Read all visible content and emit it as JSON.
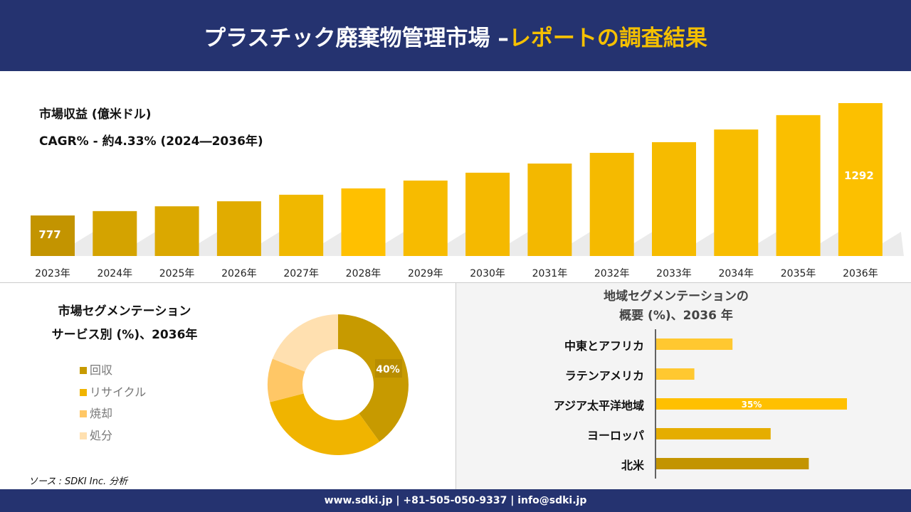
{
  "header": {
    "title_main": "プラスチック廃棄物管理市場 –",
    "title_highlight": "レポートの調査結果"
  },
  "footer": {
    "text": "www.sdki.jp | +81-505-050-9337 | info@sdki.jp"
  },
  "source": "ソース : SDKI Inc. 分析",
  "chart_data": [
    {
      "type": "bar",
      "title": "市場収益 (億米ドル)",
      "subtitle": "CAGR% - 約4.33% (2024―2036年)",
      "categories": [
        "2023年",
        "2024年",
        "2025年",
        "2026年",
        "2027年",
        "2028年",
        "2029年",
        "2030年",
        "2031年",
        "2032年",
        "2033年",
        "2034年",
        "2035年",
        "2036年"
      ],
      "values": [
        777,
        797,
        819,
        842,
        872,
        901,
        937,
        973,
        1015,
        1064,
        1113,
        1171,
        1237,
        1292
      ],
      "labels": {
        "0": "777",
        "13": "1292"
      },
      "colors": [
        "#c39400",
        "#d4a300",
        "#dba800",
        "#e1ac00",
        "#f0b800",
        "#ffc000",
        "#f7bb00",
        "#f5b900",
        "#f3b800",
        "#f5ba00",
        "#f6bb00",
        "#f8bd00",
        "#fabf00",
        "#fcc000"
      ]
    },
    {
      "type": "pie",
      "title_line1": "市場セグメンテーション",
      "title_line2": "サービス別 (%)、2036年",
      "categories": [
        "回収",
        "リサイクル",
        "焼却",
        "処分"
      ],
      "values": [
        40,
        31,
        10,
        19
      ],
      "colors": [
        "#c79a00",
        "#f0b400",
        "#ffc766",
        "#ffe0b0"
      ],
      "label": "40%"
    },
    {
      "type": "bar",
      "orientation": "horizontal",
      "title_line1": "地域セグメンテーションの",
      "title_line2": "概要 (%)、2036 年",
      "categories": [
        "中東とアフリカ",
        "ラテンアメリカ",
        "アジア太平洋地域",
        "ヨーロッパ",
        "北米"
      ],
      "values": [
        14,
        7,
        35,
        21,
        28
      ],
      "label": "35%",
      "colors": [
        "#ffc830",
        "#ffc830",
        "#ffc000",
        "#e5ad00",
        "#c39400"
      ]
    }
  ]
}
